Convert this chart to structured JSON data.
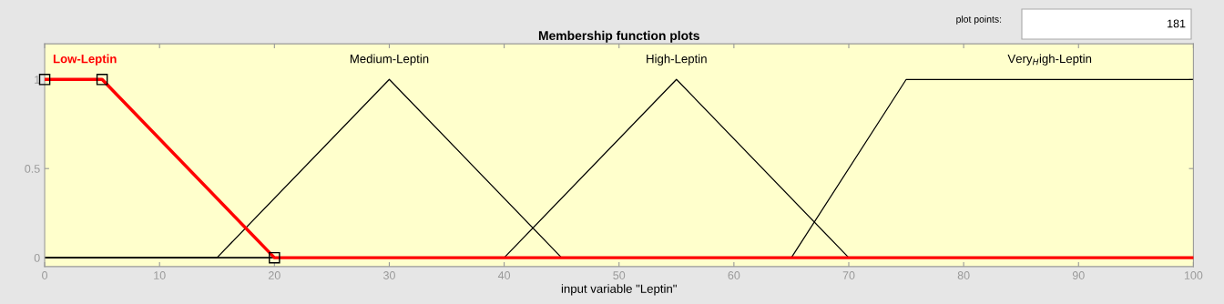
{
  "chart_data": {
    "type": "line",
    "title": "Membership function plots",
    "xlabel": "input variable \"Leptin\"",
    "series": [
      {
        "name": "Low-Leptin",
        "color": "#ff0000",
        "marker": "square",
        "x": [
          0,
          5,
          20,
          100
        ],
        "values": [
          1,
          1,
          0,
          0
        ]
      },
      {
        "name": "Medium-Leptin",
        "color": "#000000",
        "x": [
          0,
          15,
          30,
          45,
          100
        ],
        "values": [
          0,
          0,
          1,
          0,
          0
        ]
      },
      {
        "name": "High-Leptin",
        "color": "#000000",
        "x": [
          0,
          40,
          55,
          70,
          100
        ],
        "values": [
          0,
          0,
          1,
          0,
          0
        ]
      },
      {
        "name": "Very$_{H}$igh-Leptin",
        "color": "#000000",
        "x": [
          0,
          65,
          75,
          100
        ],
        "values": [
          0,
          0,
          1,
          1
        ]
      }
    ],
    "xlim": [
      0,
      100
    ],
    "ylim": [
      -0.05,
      1.2
    ],
    "xticks": [
      0,
      10,
      20,
      30,
      40,
      50,
      60,
      70,
      80,
      90,
      100
    ],
    "yticks": [
      0,
      0.5,
      1
    ],
    "grid": false,
    "annotations": [
      "plot points:",
      "181"
    ]
  }
}
